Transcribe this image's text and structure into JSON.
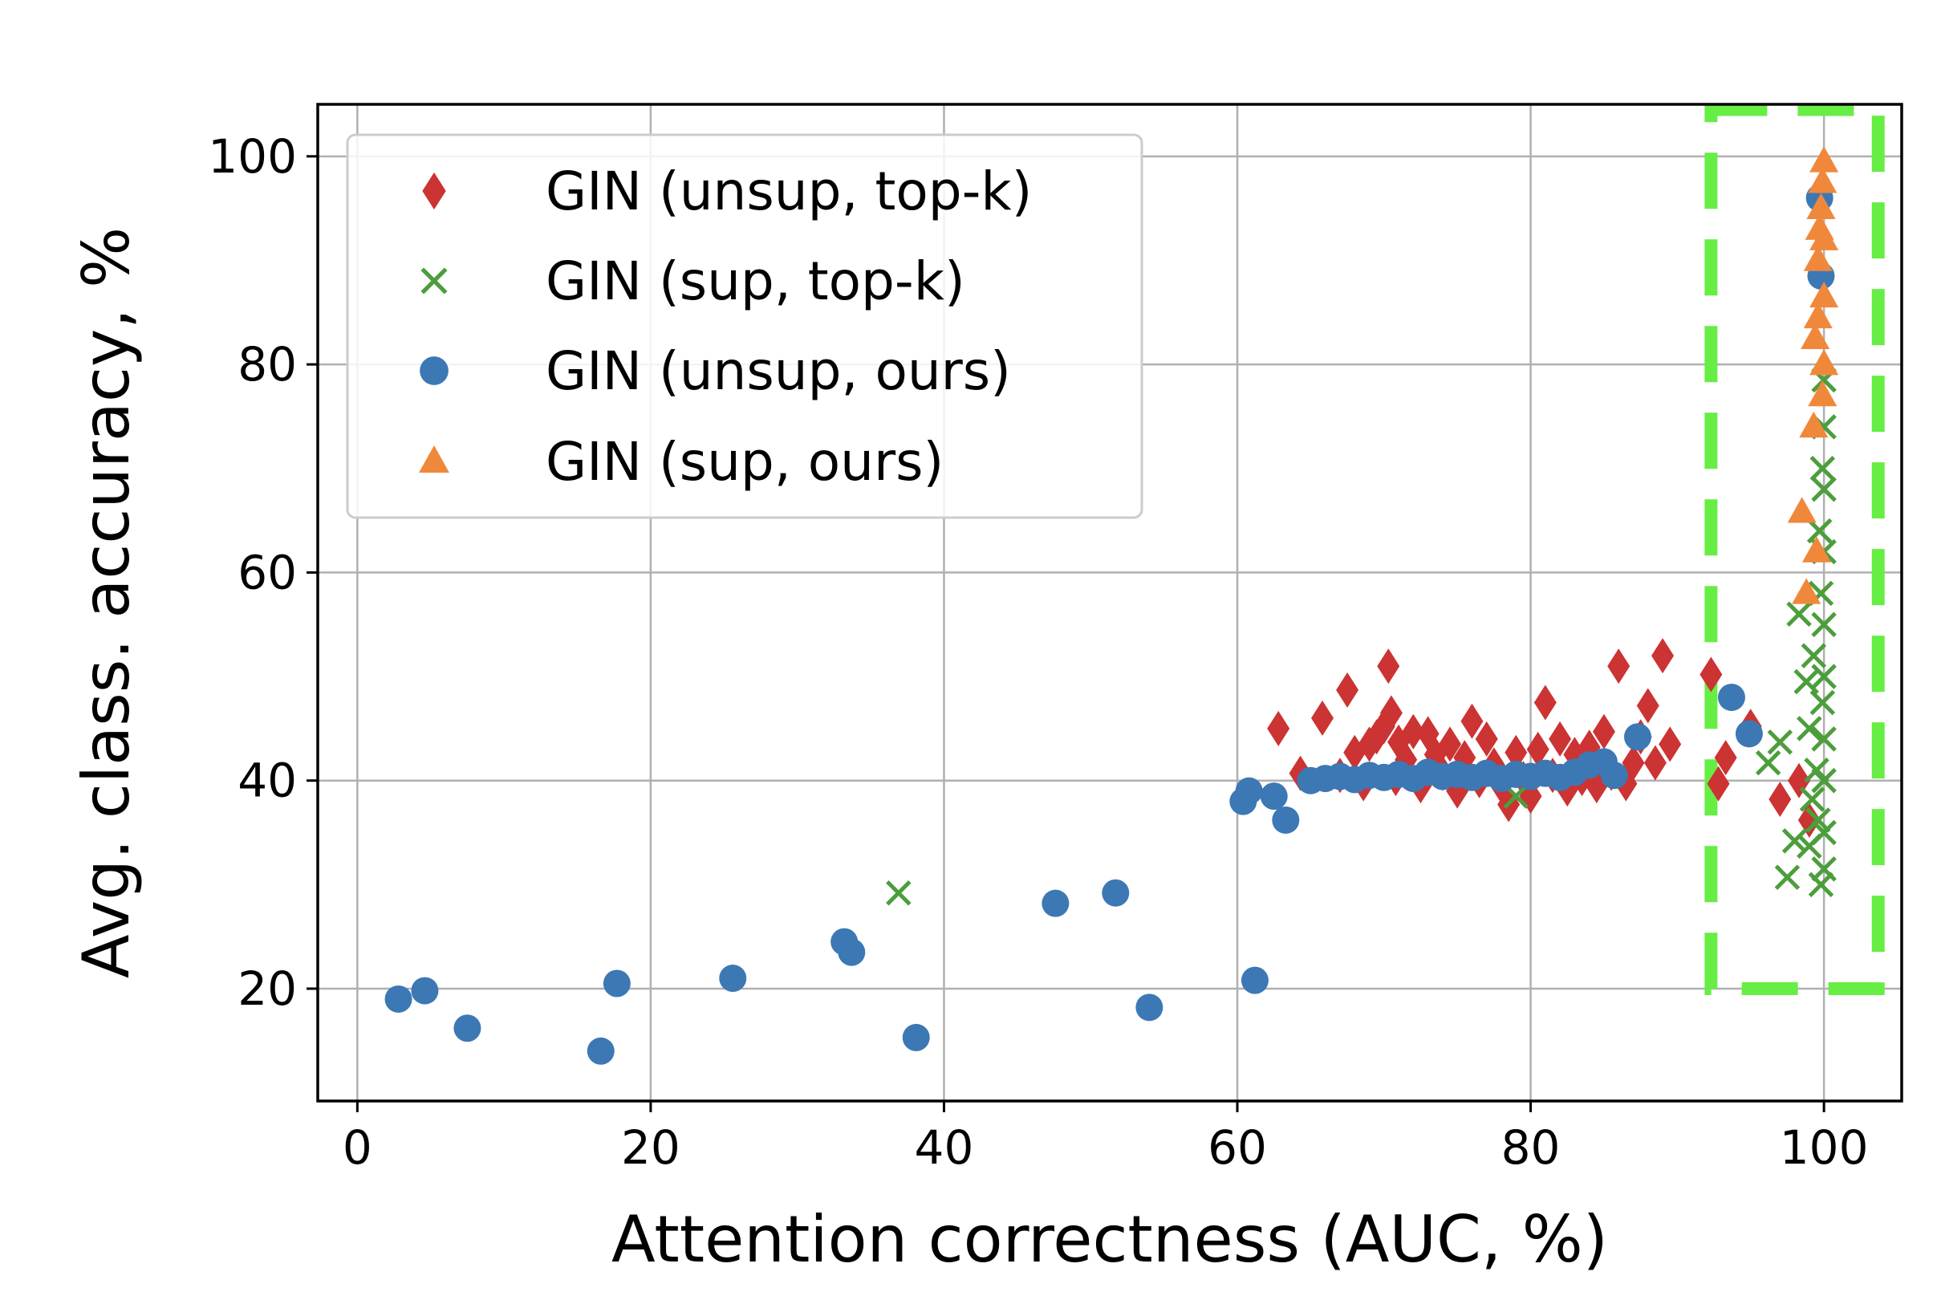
{
  "chart_data": {
    "type": "scatter",
    "title": "",
    "xlabel": "Attention correctness (AUC, %)",
    "ylabel": "Avg. class. accuracy, %",
    "xlim": [
      -2.7,
      105.3
    ],
    "ylim": [
      9.2,
      105.0
    ],
    "xticks": [
      0,
      20,
      40,
      60,
      80,
      100
    ],
    "yticks": [
      20,
      40,
      60,
      80,
      100
    ],
    "grid": true,
    "legend_position": "top-left",
    "highlight_box": {
      "x": [
        92.3,
        103.7
      ],
      "y": [
        20.0,
        104.5
      ],
      "color": "#66ee44"
    },
    "series": [
      {
        "name": "GIN (unsup, top-k)",
        "marker": "diamond",
        "color": "#cc3333",
        "points": [
          [
            62.8,
            45.0
          ],
          [
            64.3,
            40.7
          ],
          [
            65.8,
            46.0
          ],
          [
            67.0,
            40.5
          ],
          [
            67.5,
            48.7
          ],
          [
            68.0,
            42.7
          ],
          [
            68.6,
            39.7
          ],
          [
            69.0,
            43.5
          ],
          [
            69.5,
            44.2
          ],
          [
            70.0,
            45.2
          ],
          [
            70.3,
            51.0
          ],
          [
            70.5,
            46.5
          ],
          [
            70.8,
            40.2
          ],
          [
            71.0,
            43.7
          ],
          [
            71.5,
            42.0
          ],
          [
            72.0,
            44.7
          ],
          [
            72.5,
            39.5
          ],
          [
            73.0,
            44.5
          ],
          [
            73.5,
            42.5
          ],
          [
            74.0,
            40.7
          ],
          [
            74.5,
            43.5
          ],
          [
            75.0,
            39.0
          ],
          [
            75.5,
            42.2
          ],
          [
            76.0,
            45.7
          ],
          [
            76.5,
            40.0
          ],
          [
            77.0,
            44.0
          ],
          [
            77.5,
            41.5
          ],
          [
            78.0,
            39.5
          ],
          [
            78.5,
            37.7
          ],
          [
            79.0,
            42.7
          ],
          [
            79.5,
            40.2
          ],
          [
            80.0,
            38.5
          ],
          [
            80.5,
            43.0
          ],
          [
            81.0,
            47.5
          ],
          [
            81.5,
            40.5
          ],
          [
            82.0,
            44.0
          ],
          [
            82.5,
            39.2
          ],
          [
            83.0,
            42.5
          ],
          [
            83.5,
            40.2
          ],
          [
            84.0,
            43.2
          ],
          [
            84.5,
            39.5
          ],
          [
            85.0,
            44.7
          ],
          [
            85.5,
            40.7
          ],
          [
            86.0,
            51.0
          ],
          [
            86.5,
            39.7
          ],
          [
            87.0,
            41.7
          ],
          [
            87.5,
            44.2
          ],
          [
            88.0,
            47.2
          ],
          [
            88.5,
            41.7
          ],
          [
            89.0,
            52.0
          ],
          [
            89.5,
            43.5
          ],
          [
            92.3,
            50.2
          ],
          [
            92.8,
            39.7
          ],
          [
            93.3,
            42.2
          ],
          [
            95.0,
            45.2
          ],
          [
            97.0,
            38.2
          ],
          [
            98.3,
            40.0
          ],
          [
            99.0,
            36.2
          ]
        ]
      },
      {
        "name": "GIN (sup, top-k)",
        "marker": "x",
        "color": "#4c9e3c",
        "points": [
          [
            36.9,
            29.2
          ],
          [
            79.0,
            38.5
          ],
          [
            96.2,
            41.7
          ],
          [
            97.0,
            43.7
          ],
          [
            97.5,
            30.7
          ],
          [
            98.0,
            34.2
          ],
          [
            98.3,
            56.0
          ],
          [
            98.8,
            49.5
          ],
          [
            99.0,
            33.7
          ],
          [
            99.0,
            45.0
          ],
          [
            99.2,
            38.2
          ],
          [
            99.3,
            52.0
          ],
          [
            99.5,
            41.0
          ],
          [
            99.6,
            36.2
          ],
          [
            99.7,
            64.0
          ],
          [
            99.8,
            58.0
          ],
          [
            99.8,
            30.0
          ],
          [
            99.9,
            70.0
          ],
          [
            99.9,
            47.5
          ],
          [
            100.0,
            78.5
          ],
          [
            100.0,
            74.0
          ],
          [
            100.0,
            68.0
          ],
          [
            100.0,
            62.0
          ],
          [
            100.0,
            55.0
          ],
          [
            100.0,
            50.0
          ],
          [
            100.0,
            44.0
          ],
          [
            100.0,
            40.0
          ],
          [
            100.0,
            35.0
          ],
          [
            100.0,
            31.5
          ]
        ]
      },
      {
        "name": "GIN (unsup, ours)",
        "marker": "circle",
        "color": "#3c78b4",
        "points": [
          [
            2.8,
            19.0
          ],
          [
            4.6,
            19.8
          ],
          [
            7.5,
            16.2
          ],
          [
            16.6,
            14.0
          ],
          [
            17.7,
            20.5
          ],
          [
            25.6,
            21.0
          ],
          [
            33.2,
            24.5
          ],
          [
            33.7,
            23.5
          ],
          [
            38.1,
            15.3
          ],
          [
            47.6,
            28.2
          ],
          [
            51.7,
            29.2
          ],
          [
            54.0,
            18.2
          ],
          [
            60.4,
            38.0
          ],
          [
            60.8,
            39.0
          ],
          [
            62.5,
            38.5
          ],
          [
            63.3,
            36.2
          ],
          [
            61.2,
            20.8
          ],
          [
            65.0,
            40.0
          ],
          [
            66.0,
            40.2
          ],
          [
            67.0,
            40.4
          ],
          [
            68.0,
            40.1
          ],
          [
            69.0,
            40.5
          ],
          [
            70.0,
            40.3
          ],
          [
            71.0,
            40.6
          ],
          [
            72.0,
            40.2
          ],
          [
            73.0,
            40.8
          ],
          [
            74.0,
            40.4
          ],
          [
            75.0,
            40.6
          ],
          [
            76.0,
            40.3
          ],
          [
            77.0,
            40.7
          ],
          [
            78.0,
            40.2
          ],
          [
            79.0,
            40.6
          ],
          [
            80.0,
            40.4
          ],
          [
            81.0,
            40.7
          ],
          [
            82.0,
            40.3
          ],
          [
            83.0,
            40.8
          ],
          [
            84.0,
            41.5
          ],
          [
            85.0,
            41.8
          ],
          [
            85.7,
            40.5
          ],
          [
            87.3,
            44.2
          ],
          [
            93.7,
            48.0
          ],
          [
            94.9,
            44.5
          ],
          [
            99.7,
            96.0
          ],
          [
            99.8,
            88.5
          ]
        ]
      },
      {
        "name": "GIN (sup, ours)",
        "marker": "triangle",
        "color": "#f0883c",
        "points": [
          [
            98.5,
            65.8
          ],
          [
            98.8,
            58.0
          ],
          [
            99.3,
            74.0
          ],
          [
            99.4,
            82.5
          ],
          [
            99.6,
            84.5
          ],
          [
            99.6,
            90.0
          ],
          [
            99.7,
            93.0
          ],
          [
            99.8,
            95.0
          ],
          [
            99.9,
            97.5
          ],
          [
            100.0,
            99.5
          ],
          [
            100.0,
            92.0
          ],
          [
            100.0,
            86.5
          ],
          [
            100.0,
            80.0
          ],
          [
            99.9,
            77.0
          ],
          [
            99.5,
            62.0
          ]
        ]
      }
    ]
  }
}
